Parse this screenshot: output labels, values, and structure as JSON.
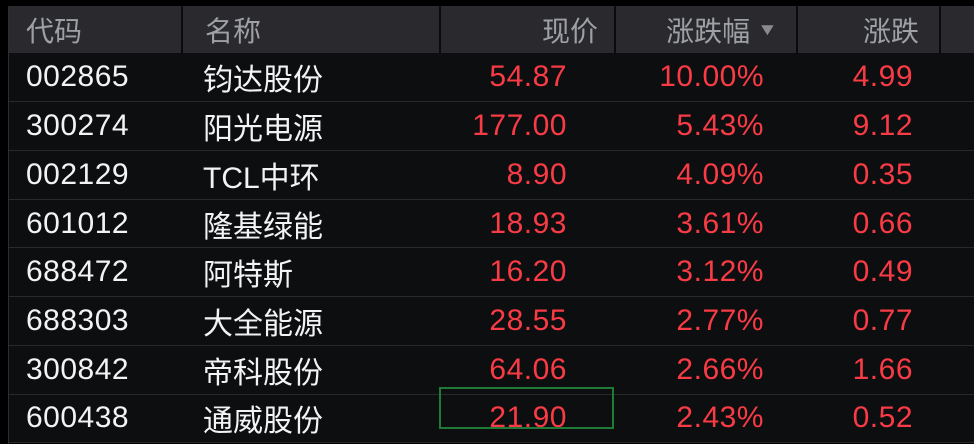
{
  "table": {
    "columns": [
      {
        "key": "code",
        "label": "代码"
      },
      {
        "key": "name",
        "label": "名称"
      },
      {
        "key": "price",
        "label": "现价"
      },
      {
        "key": "pct",
        "label": "涨跌幅",
        "sorted": "desc"
      },
      {
        "key": "chg",
        "label": "涨跌"
      }
    ],
    "sort_icon": "▼",
    "rows": [
      {
        "code": "002865",
        "name": "钧达股份",
        "price": "54.87",
        "pct": "10.00%",
        "chg": "4.99"
      },
      {
        "code": "300274",
        "name": "阳光电源",
        "price": "177.00",
        "pct": "5.43%",
        "chg": "9.12"
      },
      {
        "code": "002129",
        "name": "TCL中环",
        "price": "8.90",
        "pct": "4.09%",
        "chg": "0.35"
      },
      {
        "code": "601012",
        "name": "隆基绿能",
        "price": "18.93",
        "pct": "3.61%",
        "chg": "0.66"
      },
      {
        "code": "688472",
        "name": "阿特斯",
        "price": "16.20",
        "pct": "3.12%",
        "chg": "0.49"
      },
      {
        "code": "688303",
        "name": "大全能源",
        "price": "28.55",
        "pct": "2.77%",
        "chg": "0.77"
      },
      {
        "code": "300842",
        "name": "帝科股份",
        "price": "64.06",
        "pct": "2.66%",
        "chg": "1.66"
      },
      {
        "code": "600438",
        "name": "通威股份",
        "price": "21.90",
        "pct": "2.43%",
        "chg": "0.52"
      }
    ],
    "selected": {
      "row_index": 7,
      "column": "price"
    },
    "colors": {
      "up_red": "#f83b45",
      "header_text": "#9da0a4",
      "selection_green": "#1e7a36",
      "row_background": "#0d0e10",
      "header_background": "#2a2a2e"
    }
  }
}
